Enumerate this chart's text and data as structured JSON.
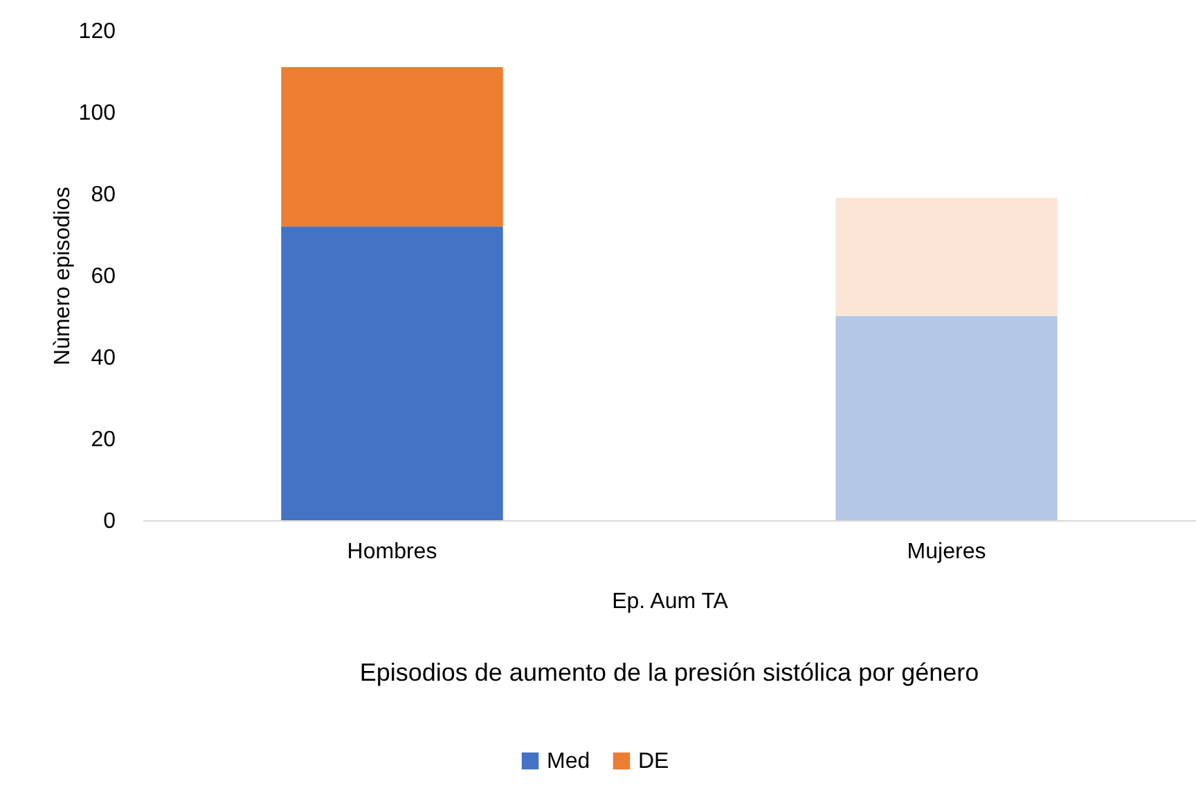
{
  "chart_data": {
    "type": "bar",
    "title": "Episodios de aumento de la presión sistólica por género",
    "xlabel": "Ep. Aum TA",
    "ylabel": "Nùmero episodios",
    "categories": [
      "Hombres",
      "Mujeres"
    ],
    "series": [
      {
        "name": "Med",
        "color": "#4472c4",
        "colors": [
          "#4472c4",
          "#b4c7e7"
        ],
        "values": [
          72,
          50
        ]
      },
      {
        "name": "DE",
        "color": "#ed7d31",
        "colors": [
          "#ed7d31",
          "#fbe5d6"
        ],
        "values": [
          39,
          29
        ]
      }
    ],
    "stacked": true,
    "ylim": [
      0,
      120
    ],
    "yticks": [
      0,
      20,
      40,
      60,
      80,
      100,
      120
    ],
    "grid": false,
    "legend": "bottom"
  }
}
